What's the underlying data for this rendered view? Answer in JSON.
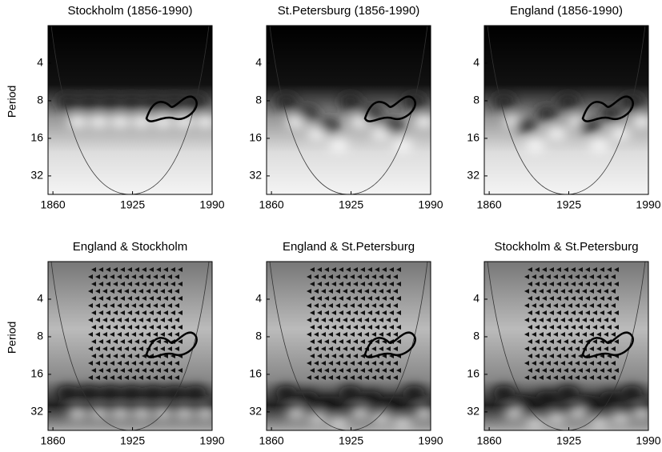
{
  "chart_data": [
    {
      "type": "heatmap",
      "title": "Stockholm (1856-1990)",
      "ylabel": "Period",
      "xlim": [
        1856,
        1990
      ],
      "xticks": [
        1860,
        1925,
        1990
      ],
      "ylim": [
        2,
        45
      ],
      "yticks": [
        4,
        8,
        16,
        32
      ],
      "y_scale": "log"
    },
    {
      "type": "heatmap",
      "title": "St.Petersburg (1856-1990)",
      "xlim": [
        1856,
        1990
      ],
      "xticks": [
        1860,
        1925,
        1990
      ],
      "ylim": [
        2,
        45
      ],
      "yticks": [
        4,
        8,
        16,
        32
      ],
      "y_scale": "log"
    },
    {
      "type": "heatmap",
      "title": "England (1856-1990)",
      "xlim": [
        1856,
        1990
      ],
      "xticks": [
        1860,
        1925,
        1990
      ],
      "ylim": [
        2,
        45
      ],
      "yticks": [
        4,
        8,
        16,
        32
      ],
      "y_scale": "log"
    },
    {
      "type": "heatmap",
      "title": "England & Stockholm",
      "ylabel": "Period",
      "xlim": [
        1856,
        1990
      ],
      "xticks": [
        1860,
        1925,
        1990
      ],
      "ylim": [
        2,
        45
      ],
      "yticks": [
        4,
        8,
        16,
        32
      ],
      "y_scale": "log"
    },
    {
      "type": "heatmap",
      "title": "England & St.Petersburg",
      "xlim": [
        1856,
        1990
      ],
      "xticks": [
        1860,
        1925,
        1990
      ],
      "ylim": [
        2,
        45
      ],
      "yticks": [
        4,
        8,
        16,
        32
      ],
      "y_scale": "log"
    },
    {
      "type": "heatmap",
      "title": "Stockholm & St.Petersburg",
      "xlim": [
        1856,
        1990
      ],
      "xticks": [
        1860,
        1925,
        1990
      ],
      "ylim": [
        2,
        45
      ],
      "yticks": [
        4,
        8,
        16,
        32
      ],
      "y_scale": "log"
    }
  ]
}
